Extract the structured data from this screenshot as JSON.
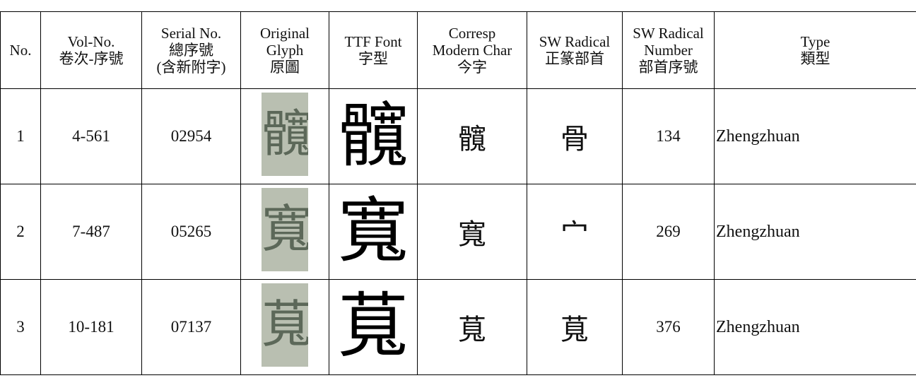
{
  "table": {
    "header": [
      [
        "No."
      ],
      [
        "Vol-No.",
        "卷次-序號"
      ],
      [
        "Serial No.",
        "總序號",
        "(含新附字)"
      ],
      [
        "Original",
        "Glyph",
        "原圖"
      ],
      [
        "TTF Font",
        "字型"
      ],
      [
        "Corresp",
        "Modern Char",
        "今字"
      ],
      [
        "SW Radical",
        "正篆部首"
      ],
      [
        "SW Radical",
        "Number",
        "部首序號"
      ],
      [
        "Type",
        "類型"
      ]
    ],
    "rows": [
      {
        "no": "1",
        "vol": "4-561",
        "serial": "02954",
        "modern": "髖",
        "radical": "骨",
        "radical_number": "134",
        "type": "Zhengzhuan"
      },
      {
        "no": "2",
        "vol": "7-487",
        "serial": "05265",
        "modern": "寬",
        "radical": "宀",
        "radical_number": "269",
        "type": "Zhengzhuan"
      },
      {
        "no": "3",
        "vol": "10-181",
        "serial": "07137",
        "modern": "萈",
        "radical": "萈",
        "radical_number": "376",
        "type": "Zhengzhuan"
      }
    ]
  }
}
